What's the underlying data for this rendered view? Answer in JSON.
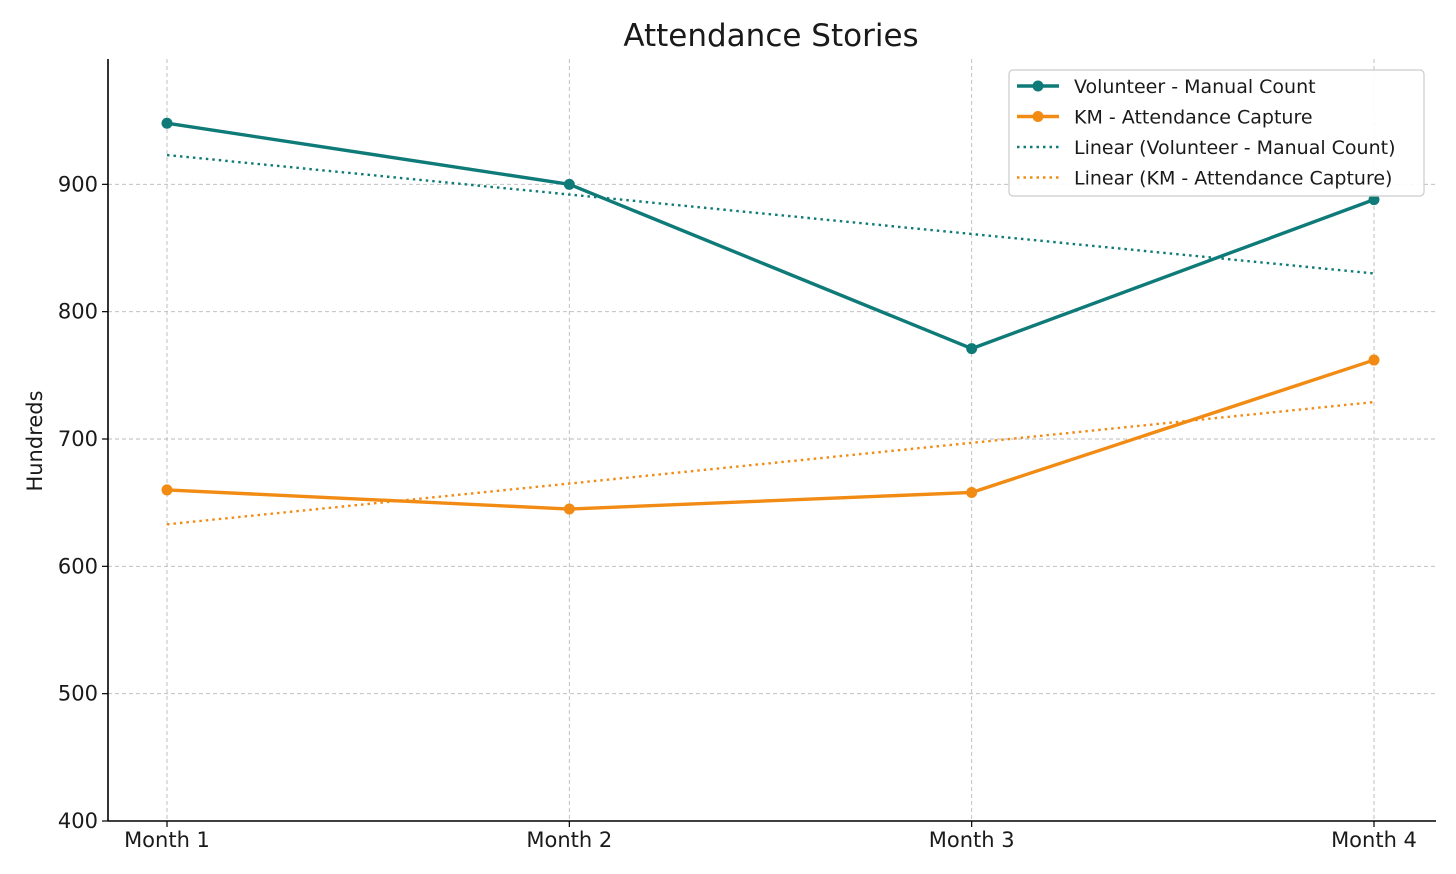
{
  "chart_data": {
    "type": "line",
    "title": "Attendance Stories",
    "xlabel": "",
    "ylabel": "Hundreds",
    "categories": [
      "Month 1",
      "Month 2",
      "Month 3",
      "Month 4"
    ],
    "ylim": [
      400,
      1000
    ],
    "yticks": [
      400,
      500,
      600,
      700,
      800,
      900
    ],
    "grid": true,
    "legend_position": "top-right",
    "series": [
      {
        "name": "Volunteer - Manual Count",
        "color": "#0f7b78",
        "style": "solid-marker",
        "values": [
          948,
          900,
          771,
          888
        ]
      },
      {
        "name": "KM - Attendance Capture",
        "color": "#f28b14",
        "style": "solid-marker",
        "values": [
          660,
          645,
          658,
          762
        ]
      },
      {
        "name": "Linear (Volunteer - Manual Count)",
        "color": "#0f7b78",
        "style": "dotted",
        "values": [
          923,
          892,
          861,
          830
        ]
      },
      {
        "name": "Linear (KM - Attendance Capture)",
        "color": "#f28b14",
        "style": "dotted",
        "values": [
          633,
          665,
          697,
          729
        ]
      }
    ]
  }
}
